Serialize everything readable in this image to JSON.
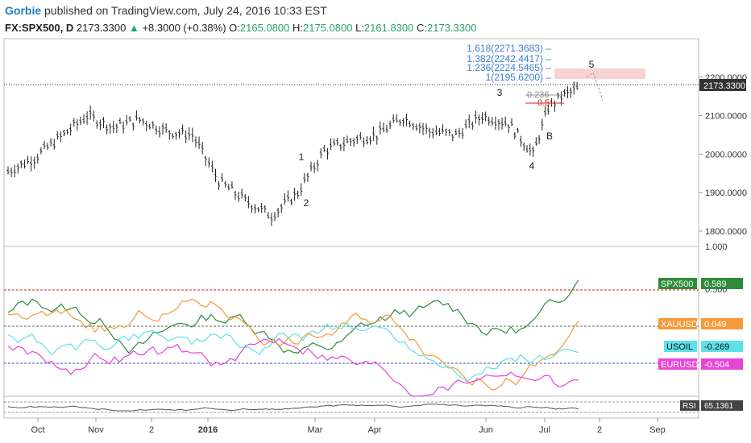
{
  "header": {
    "author": "Gorbie",
    "published": "published on TradingView.com, July 24, 2016 10:33 EST",
    "symbol": "FX:SPX500, D",
    "last": "2173.3300",
    "change": "+8.3000 (+0.38%)",
    "open_label": "O:",
    "open": "2165.0800",
    "high_label": "H:",
    "high": "2175.0800",
    "low_label": "L:",
    "low": "2161.8300",
    "close_label": "C:",
    "close": "2173.3300",
    "up_arrow": "▲"
  },
  "colors": {
    "price": "#222222",
    "spx": "#2e8b3a",
    "xau": "#f59a3a",
    "usoil": "#5ee2e8",
    "eurusd": "#e546d8",
    "fib": "#3f7bd6",
    "fib_zone": "#f9d3d3",
    "ref_red": "#cc2222",
    "ref_blue": "#3355cc"
  },
  "chart_data": [
    {
      "type": "candlestick",
      "name": "FX:SPX500, D",
      "yticks": [
        "2200.0000",
        "2100.0000",
        "2000.0000",
        "1900.0000",
        "1800.0000"
      ],
      "ylim": [
        1760,
        2300
      ],
      "last_label": "2173.3300",
      "x": [
        "2015-09-22",
        "2015-10-06",
        "2015-10-20",
        "2015-11-03",
        "2015-11-17",
        "2015-12-01",
        "2015-12-15",
        "2015-12-29",
        "2016-01-12",
        "2016-01-26",
        "2016-02-09",
        "2016-02-23",
        "2016-03-08",
        "2016-03-22",
        "2016-04-05",
        "2016-04-19",
        "2016-05-03",
        "2016-05-17",
        "2016-05-31",
        "2016-06-14",
        "2016-06-27",
        "2016-07-05",
        "2016-07-12",
        "2016-07-22"
      ],
      "close": [
        1955,
        1990,
        2045,
        2100,
        2070,
        2090,
        2060,
        2050,
        1930,
        1880,
        1840,
        1900,
        2010,
        2035,
        2050,
        2095,
        2060,
        2050,
        2100,
        2080,
        2000,
        2120,
        2150,
        2173
      ],
      "wave_labels": [
        "1",
        "2",
        "3",
        "4",
        "5",
        "B"
      ],
      "fib_levels": [
        "1.618(2271.3683)",
        "1.382(2242.4417)",
        "1.236(2224.5465)",
        "1(2195.6200)"
      ],
      "retrace_labels": [
        "0.236",
        "0.5"
      ]
    },
    {
      "type": "line",
      "name": "Correlation",
      "yticks": [
        "1.000",
        "0.500"
      ],
      "ylim": [
        -0.75,
        1.0
      ],
      "series": [
        {
          "name": "SPX500",
          "value": "0.589"
        },
        {
          "name": "XAUUSD",
          "value": "0.049"
        },
        {
          "name": "USOIL",
          "value": "-0.269"
        },
        {
          "name": "EURUSD",
          "value": "-0.504"
        }
      ]
    },
    {
      "type": "line",
      "name": "RSI",
      "value": "65.1361"
    }
  ],
  "xaxis": {
    "labels": [
      "Oct",
      "Nov",
      "2",
      "2016",
      "Mar",
      "Apr",
      "Jun",
      "Jul",
      "2",
      "Sep"
    ]
  }
}
